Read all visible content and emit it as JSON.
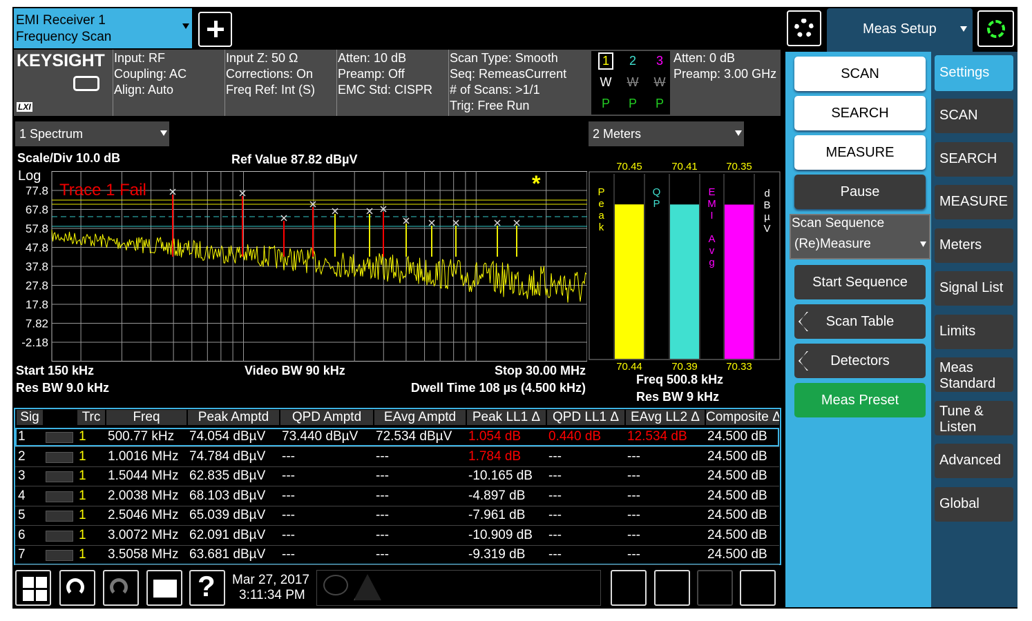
{
  "header": {
    "title_line1": "EMI Receiver 1",
    "title_line2": "Frequency Scan",
    "meas_setup": "Meas Setup"
  },
  "status": {
    "brand": "KEYSIGHT",
    "lxi": "LXI",
    "columns": [
      [
        "Input: RF",
        "Coupling: AC",
        "Align: Auto"
      ],
      [
        "Input Z: 50 Ω",
        "Corrections: On",
        "Freq Ref: Int (S)"
      ],
      [
        "Atten: 10 dB",
        "Preamp: Off",
        "EMC Std: CISPR"
      ],
      [
        "Scan Type: Smooth",
        "Seq: RemeasCurrent",
        "# of Scans: >1/1",
        "Trig: Free Run"
      ]
    ],
    "traces": [
      [
        "1",
        "W",
        "P"
      ],
      [
        "2",
        "W",
        "P"
      ],
      [
        "3",
        "W",
        "P"
      ]
    ],
    "right": [
      "Atten: 0 dB",
      "Preamp: 3.00 GHz"
    ]
  },
  "spectrum": {
    "window": "1 Spectrum",
    "scale": "Scale/Div 10.0 dB",
    "log": "Log",
    "ref": "Ref Value 87.82 dBµV",
    "fail": "Trace 1 Fail",
    "yticks": [
      77.8,
      67.8,
      57.8,
      47.8,
      37.8,
      27.8,
      17.8,
      7.82,
      -2.18
    ],
    "start": "Start 150 kHz",
    "res_bw": "Res BW 9.0 kHz",
    "video_bw": "Video BW 90 kHz",
    "stop": "Stop 30.00 MHz",
    "dwell": "Dwell Time 108 µs (4.500 kHz)"
  },
  "meters": {
    "window": "2 Meters",
    "top_values": [
      70.45,
      70.41,
      70.35
    ],
    "bottom_values": [
      70.44,
      70.39,
      70.33
    ],
    "labels": [
      "Peak",
      "QP",
      "EMI Avg"
    ],
    "colors": [
      "#ffff00",
      "#40e0d0",
      "#ff00ff"
    ],
    "unit": "dBµV",
    "freq": "Freq 500.8 kHz",
    "res_bw": "Res BW 9 kHz"
  },
  "table": {
    "headers": [
      "Sig",
      "Trc",
      "Freq",
      "Peak Amptd",
      "QPD Amptd",
      "EAvg Amptd",
      "Peak LL1 Δ",
      "QPD LL1 Δ",
      "EAvg LL2 Δ",
      "Composite Δ"
    ],
    "rows": [
      [
        "1",
        "1",
        "500.77 kHz",
        "74.054 dBµV",
        "73.440 dBµV",
        "72.534 dBµV",
        "1.054 dB",
        "0.440 dB",
        "12.534 dB",
        "24.500 dB"
      ],
      [
        "2",
        "1",
        "1.0016 MHz",
        "74.784 dBµV",
        "---",
        "---",
        "1.784 dB",
        "---",
        "---",
        "24.500 dB"
      ],
      [
        "3",
        "1",
        "1.5044 MHz",
        "62.835 dBµV",
        "---",
        "---",
        "-10.165 dB",
        "---",
        "---",
        "24.500 dB"
      ],
      [
        "4",
        "1",
        "2.0038 MHz",
        "68.103 dBµV",
        "---",
        "---",
        "-4.897 dB",
        "---",
        "---",
        "24.500 dB"
      ],
      [
        "5",
        "1",
        "2.5046 MHz",
        "65.039 dBµV",
        "---",
        "---",
        "-7.961 dB",
        "---",
        "---",
        "24.500 dB"
      ],
      [
        "6",
        "1",
        "3.0072 MHz",
        "62.091 dBµV",
        "---",
        "---",
        "-10.909 dB",
        "---",
        "---",
        "24.500 dB"
      ],
      [
        "7",
        "1",
        "3.5058 MHz",
        "63.681 dBµV",
        "---",
        "---",
        "-9.319 dB",
        "---",
        "---",
        "24.500 dB"
      ]
    ]
  },
  "softkeys": {
    "tab": "Settings",
    "left": [
      "SCAN",
      "SEARCH",
      "MEASURE",
      "Pause"
    ],
    "scan_sequence": {
      "label": "Scan Sequence",
      "value": "(Re)Measure"
    },
    "left2": [
      "Start Sequence",
      "Scan Table",
      "Detectors",
      "Meas Preset"
    ],
    "right": [
      "SCAN",
      "SEARCH",
      "MEASURE",
      "Meters",
      "Signal List",
      "Limits",
      "Meas Standard",
      "Tune & Listen",
      "Advanced",
      "Global"
    ]
  },
  "footer": {
    "help": "?",
    "date": "Mar 27, 2017",
    "time": "3:11:34 PM"
  }
}
